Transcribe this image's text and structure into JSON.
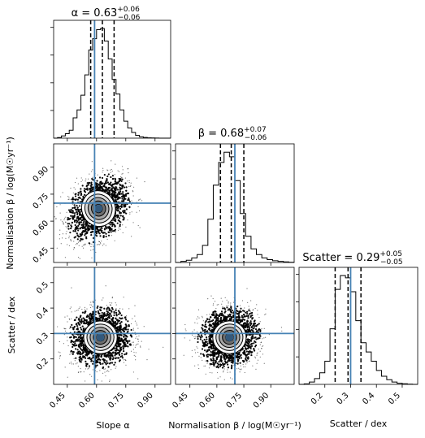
{
  "figure": {
    "panel_titles": {
      "alpha": {
        "main": "α = 0.63",
        "sup": "+0.06",
        "sub": "−0.06"
      },
      "beta": {
        "main": "β = 0.68",
        "sup": "+0.07",
        "sub": "−0.06"
      },
      "scatter": {
        "main": "Scatter = 0.29",
        "sup": "+0.05",
        "sub": "−0.05"
      }
    },
    "axis_labels": {
      "x_alpha": "Slope α",
      "x_beta": "Normalisation β / log(M☉yr⁻¹)",
      "x_scatter": "Scatter / dex",
      "y_beta": "Normalisation β / log(M☉yr⁻¹)",
      "y_scatter": "Scatter / dex"
    },
    "colors": {
      "truth_line": "#4682b4",
      "quantile_line": "#000000",
      "hist_line": "#000000",
      "points": "#000000",
      "contour_fill": [
        "#ffffff",
        "#d9d9d9",
        "#a6a6a6",
        "#6e6e6e",
        "#3c3c3c"
      ],
      "mode_marker": "#4a7fb0"
    }
  },
  "chart_data": {
    "type": "corner",
    "parameters": [
      {
        "name": "alpha",
        "median": 0.63,
        "plus": 0.06,
        "minus": 0.06,
        "quantiles": [
          0.57,
          0.63,
          0.69
        ],
        "truth": 0.59,
        "range": [
          0.38,
          0.98
        ],
        "ticks": [
          0.45,
          0.6,
          0.75,
          0.9
        ],
        "tick_labels": [
          "0.45",
          "0.60",
          "0.75",
          "0.90"
        ],
        "hist_bins": [
          0.38,
          0.4,
          0.42,
          0.44,
          0.46,
          0.48,
          0.5,
          0.52,
          0.54,
          0.56,
          0.58,
          0.6,
          0.62,
          0.64,
          0.66,
          0.68,
          0.7,
          0.72,
          0.74,
          0.76,
          0.78,
          0.8,
          0.82,
          0.84,
          0.86,
          0.88,
          0.9,
          0.92,
          0.94,
          0.96,
          0.98
        ],
        "hist_counts": [
          0,
          0.005,
          0.02,
          0.04,
          0.07,
          0.18,
          0.25,
          0.38,
          0.56,
          0.78,
          0.88,
          0.96,
          0.97,
          0.86,
          0.7,
          0.52,
          0.39,
          0.25,
          0.15,
          0.09,
          0.05,
          0.025,
          0.012,
          0.006,
          0.003,
          0.002,
          0.001,
          0,
          0,
          0
        ]
      },
      {
        "name": "beta",
        "median": 0.68,
        "plus": 0.07,
        "minus": 0.06,
        "quantiles": [
          0.62,
          0.68,
          0.75
        ],
        "truth": 0.7,
        "range": [
          0.37,
          1.03
        ],
        "ticks": [
          0.45,
          0.6,
          0.75,
          0.9
        ],
        "tick_labels": [
          "0.45",
          "0.60",
          "0.75",
          "0.90"
        ],
        "hist_bins": [
          0.37,
          0.4,
          0.43,
          0.46,
          0.49,
          0.52,
          0.55,
          0.58,
          0.61,
          0.64,
          0.67,
          0.7,
          0.73,
          0.76,
          0.79,
          0.82,
          0.85,
          0.88,
          0.91,
          0.94,
          0.97,
          1.0,
          1.03
        ],
        "hist_counts": [
          0,
          0.01,
          0.02,
          0.04,
          0.07,
          0.15,
          0.38,
          0.68,
          0.88,
          0.97,
          0.93,
          0.72,
          0.43,
          0.23,
          0.12,
          0.07,
          0.04,
          0.025,
          0.015,
          0.01,
          0.005,
          0.002
        ]
      },
      {
        "name": "scatter",
        "median": 0.29,
        "plus": 0.05,
        "minus": 0.05,
        "quantiles": [
          0.24,
          0.29,
          0.34
        ],
        "truth": 0.3,
        "range": [
          0.1,
          0.56
        ],
        "ticks": [
          0.2,
          0.3,
          0.4,
          0.5
        ],
        "tick_labels": [
          "0.2",
          "0.3",
          "0.4",
          "0.5"
        ],
        "hist_bins": [
          0.1,
          0.12,
          0.14,
          0.16,
          0.18,
          0.2,
          0.22,
          0.24,
          0.26,
          0.28,
          0.3,
          0.32,
          0.34,
          0.36,
          0.38,
          0.4,
          0.42,
          0.44,
          0.46,
          0.48,
          0.5,
          0.52,
          0.54,
          0.56
        ],
        "hist_counts": [
          0,
          0.004,
          0.02,
          0.05,
          0.1,
          0.2,
          0.48,
          0.82,
          0.94,
          0.92,
          0.8,
          0.55,
          0.36,
          0.28,
          0.2,
          0.12,
          0.07,
          0.04,
          0.02,
          0.01,
          0.005,
          0.002,
          0
        ]
      }
    ],
    "joint": [
      {
        "x": "alpha",
        "y": "beta",
        "center": [
          0.61,
          0.67
        ],
        "sd": [
          0.06,
          0.07
        ],
        "rho": 0.3,
        "level_scales": [
          0.6,
          1.1,
          1.6,
          2.1,
          2.6
        ]
      },
      {
        "x": "alpha",
        "y": "scatter",
        "center": [
          0.62,
          0.285
        ],
        "sd": [
          0.06,
          0.045
        ],
        "rho": 0.05,
        "level_scales": [
          0.6,
          1.1,
          1.6,
          2.1,
          2.6
        ]
      },
      {
        "x": "beta",
        "y": "scatter",
        "center": [
          0.67,
          0.285
        ],
        "sd": [
          0.065,
          0.045
        ],
        "rho": 0.1,
        "level_scales": [
          0.6,
          1.1,
          1.6,
          2.1,
          2.6
        ]
      }
    ]
  }
}
